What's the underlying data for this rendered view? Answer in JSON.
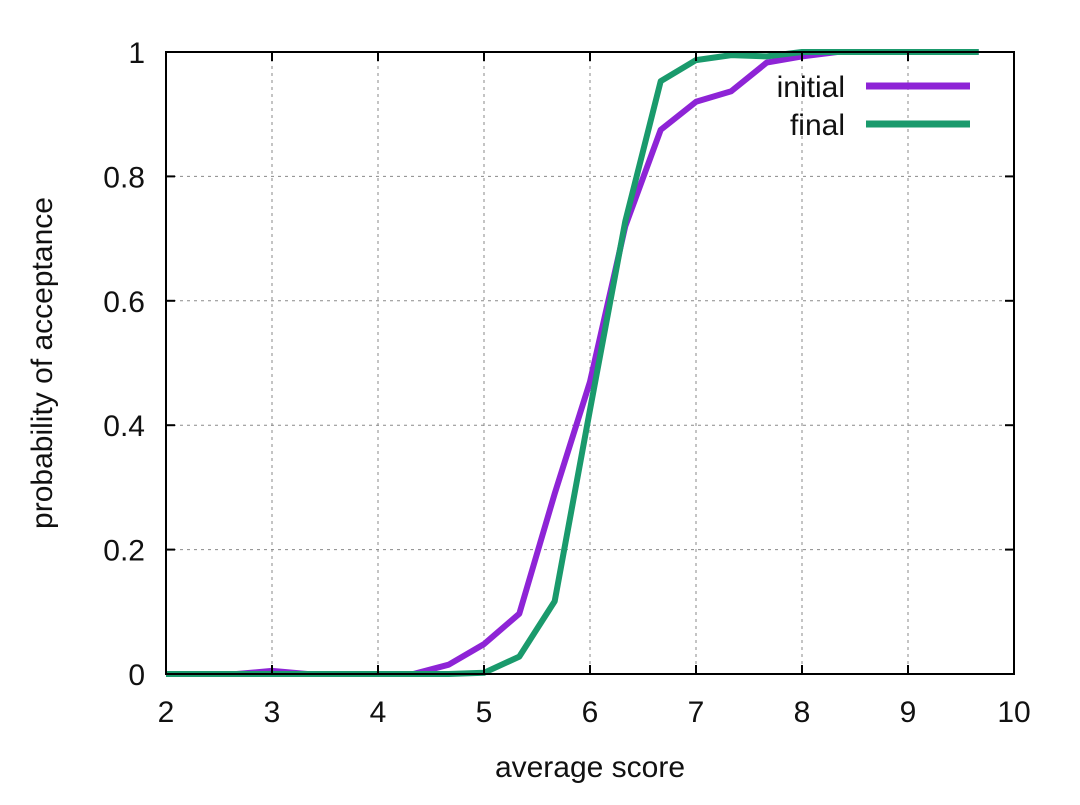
{
  "chart_data": {
    "type": "line",
    "title": "",
    "xlabel": "average score",
    "ylabel": "probability of acceptance",
    "xlim": [
      2,
      10
    ],
    "ylim": [
      0,
      1
    ],
    "x_ticks": [
      2,
      3,
      4,
      5,
      6,
      7,
      8,
      9,
      10
    ],
    "x_tick_labels": [
      "2",
      "3",
      "4",
      "5",
      "6",
      "7",
      "8",
      "9",
      "10"
    ],
    "y_ticks": [
      0,
      0.2,
      0.4,
      0.6,
      0.8,
      1
    ],
    "y_tick_labels": [
      "0",
      "0.2",
      "0.4",
      "0.6",
      "0.8",
      "1"
    ],
    "grid": true,
    "legend_position": "top-right",
    "series": [
      {
        "name": "initial",
        "color": "#8e24d6",
        "x": [
          2.0,
          2.333,
          2.667,
          3.0,
          3.333,
          3.667,
          4.0,
          4.333,
          4.667,
          5.0,
          5.333,
          5.667,
          6.0,
          6.333,
          6.667,
          7.0,
          7.333,
          7.667,
          8.0,
          8.333,
          8.667,
          9.0,
          9.333,
          9.667
        ],
        "values": [
          0.0,
          0.0,
          0.0,
          0.005,
          0.0,
          0.0,
          0.0,
          0.0,
          0.015,
          0.048,
          0.097,
          0.29,
          0.47,
          0.72,
          0.875,
          0.92,
          0.937,
          0.983,
          0.993,
          1.0,
          1.0,
          1.0,
          1.0,
          1.0
        ]
      },
      {
        "name": "final",
        "color": "#1a9a6c",
        "x": [
          2.0,
          2.333,
          2.667,
          3.0,
          3.333,
          3.667,
          4.0,
          4.333,
          4.667,
          5.0,
          5.333,
          5.667,
          6.0,
          6.333,
          6.667,
          7.0,
          7.333,
          7.667,
          8.0,
          8.333,
          8.667,
          9.0,
          9.333,
          9.667
        ],
        "values": [
          0.0,
          0.0,
          0.0,
          0.0,
          0.0,
          0.0,
          0.0,
          0.0,
          0.0,
          0.002,
          0.028,
          0.117,
          0.425,
          0.728,
          0.953,
          0.987,
          0.995,
          0.993,
          1.0,
          1.0,
          1.0,
          1.0,
          1.0,
          1.0
        ]
      }
    ]
  }
}
